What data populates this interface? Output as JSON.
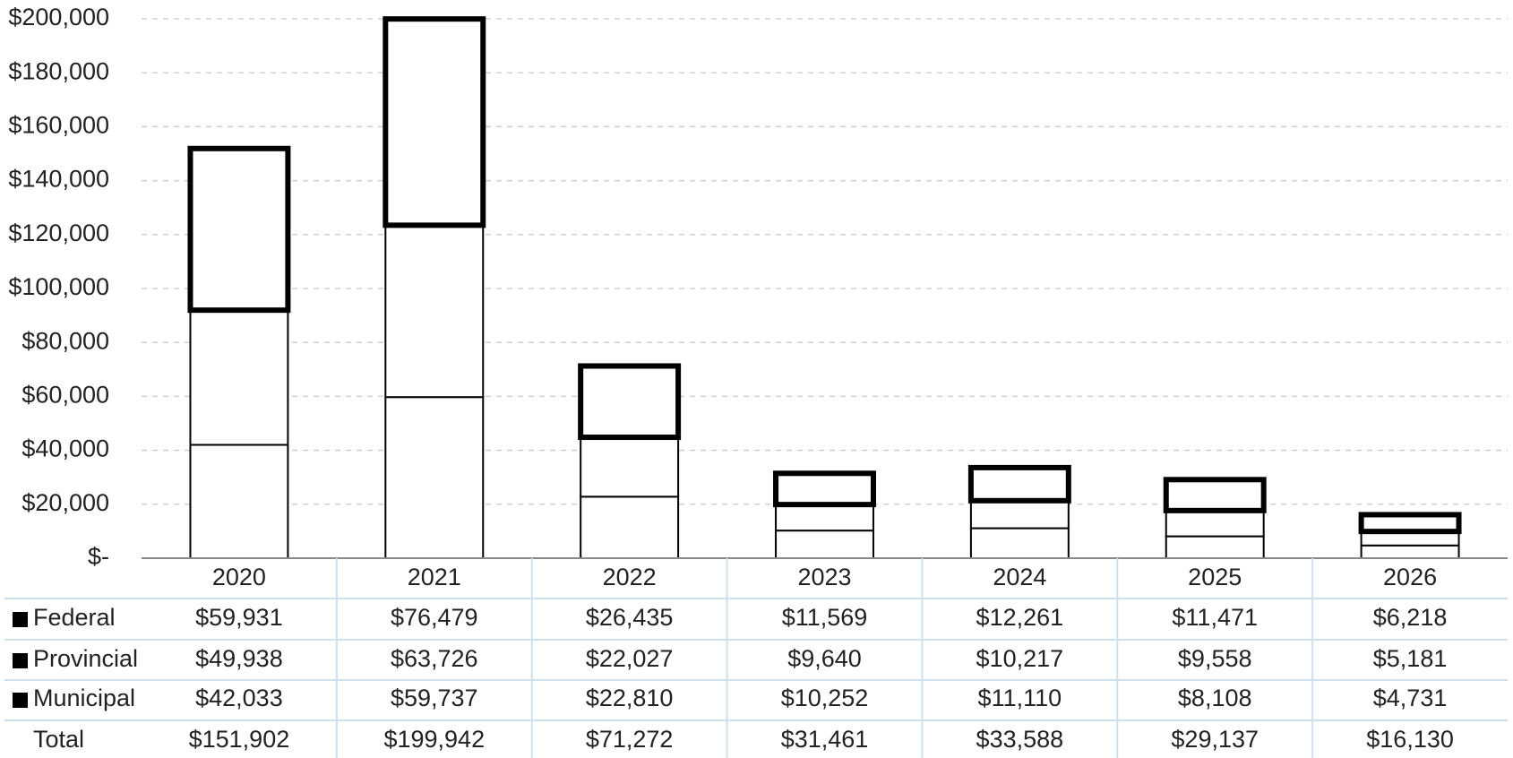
{
  "chart_data": {
    "type": "stacked-bar",
    "categories": [
      "2020",
      "2021",
      "2022",
      "2023",
      "2024",
      "2025",
      "2026"
    ],
    "series": [
      {
        "name": "Federal",
        "color": "#000000",
        "values": [
          59931,
          76479,
          26435,
          11569,
          12261,
          11471,
          6218
        ],
        "value_labels": [
          "$59,931",
          "$76,479",
          "$26,435",
          "$11,569",
          "$12,261",
          "$11,471",
          "$6,218"
        ]
      },
      {
        "name": "Provincial",
        "color": "#000000",
        "values": [
          49938,
          63726,
          22027,
          9640,
          10217,
          9558,
          5181
        ],
        "value_labels": [
          "$49,938",
          "$63,726",
          "$22,027",
          "$9,640",
          "$10,217",
          "$9,558",
          "$5,181"
        ]
      },
      {
        "name": "Municipal",
        "color": "#000000",
        "values": [
          42033,
          59737,
          22810,
          10252,
          11110,
          8108,
          4731
        ],
        "value_labels": [
          "$42,033",
          "$59,737",
          "$22,810",
          "$10,252",
          "$11,110",
          "$8,108",
          "$4,731"
        ]
      }
    ],
    "total_name": "Total",
    "totals": [
      151902,
      199942,
      71272,
      31461,
      33588,
      29137,
      16130
    ],
    "totals_labels": [
      "$151,902",
      "$199,942",
      "$71,272",
      "$31,461",
      "$33,588",
      "$29,137",
      "$16,130"
    ],
    "ylim": [
      0,
      200000
    ],
    "yticks": [
      {
        "value": 0,
        "label": "$-"
      },
      {
        "value": 20000,
        "label": "$20,000"
      },
      {
        "value": 40000,
        "label": "$40,000"
      },
      {
        "value": 60000,
        "label": "$60,000"
      },
      {
        "value": 80000,
        "label": "$80,000"
      },
      {
        "value": 100000,
        "label": "$100,000"
      },
      {
        "value": 120000,
        "label": "$120,000"
      },
      {
        "value": 140000,
        "label": "$140,000"
      },
      {
        "value": 160000,
        "label": "$160,000"
      },
      {
        "value": 180000,
        "label": "$180,000"
      },
      {
        "value": 200000,
        "label": "$200,000"
      }
    ],
    "grid": true
  }
}
